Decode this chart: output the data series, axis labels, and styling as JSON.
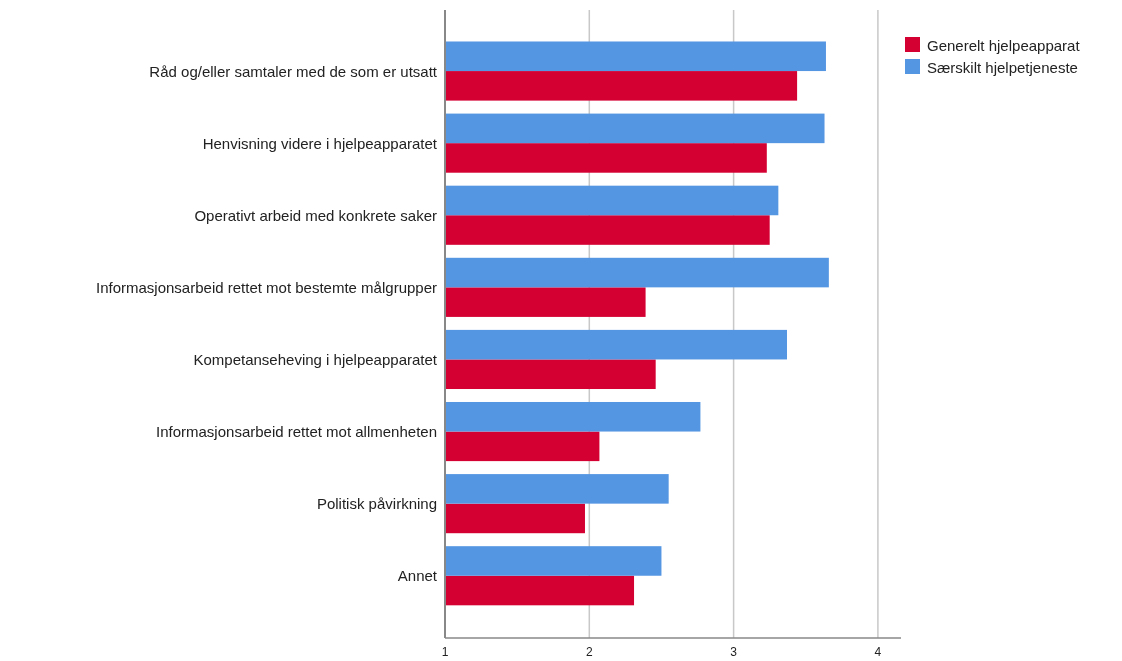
{
  "chart_data": {
    "type": "bar",
    "orientation": "horizontal",
    "categories": [
      "Råd og/eller samtaler med de som er utsatt",
      "Henvisning videre i hjelpeapparatet",
      "Operativt arbeid med konkrete saker",
      "Informasjonsarbeid rettet mot bestemte målgrupper",
      "Kompetanseheving i hjelpeapparatet",
      "Informasjonsarbeid rettet mot allmenheten",
      "Politisk påvirkning",
      "Annet"
    ],
    "series": [
      {
        "name": "Generelt hjelpeapparat",
        "color": "#d50032",
        "values": [
          3.44,
          3.23,
          3.25,
          2.39,
          2.46,
          2.07,
          1.97,
          2.31
        ]
      },
      {
        "name": "Særskilt hjelpetjeneste",
        "color": "#5596e3",
        "values": [
          3.64,
          3.63,
          3.31,
          3.66,
          3.37,
          2.77,
          2.55,
          2.5
        ]
      }
    ],
    "xlim": [
      1,
      4.16
    ],
    "xticks": [
      1,
      2,
      3,
      4
    ],
    "grid": "x",
    "legend": "top right"
  }
}
